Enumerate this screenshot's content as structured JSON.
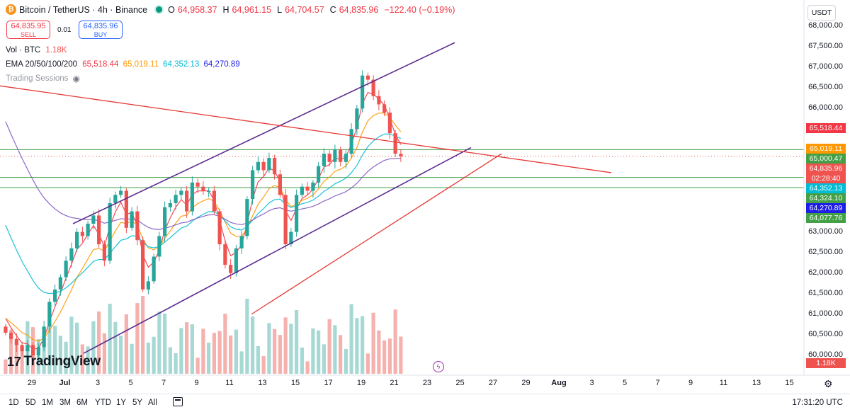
{
  "header": {
    "title": "Bitcoin / TetherUS · 4h · Binance",
    "ohlc": [
      {
        "label": "O",
        "value": "64,958.37"
      },
      {
        "label": "H",
        "value": "64,961.15"
      },
      {
        "label": "L",
        "value": "64,704.57"
      },
      {
        "label": "C",
        "value": "64,835.96"
      }
    ],
    "change": "−122.40 (−0.19%)"
  },
  "trade": {
    "sell_price": "64,835.95",
    "sell_label": "SELL",
    "spread": "0.01",
    "buy_price": "64,835.96",
    "buy_label": "BUY"
  },
  "legend": {
    "vol_label": "Vol · BTC",
    "vol_value": "1.18K",
    "ema_label": "EMA 20/50/100/200",
    "ema_values": [
      "65,518.44",
      "65,019.11",
      "64,352.13",
      "64,270.89"
    ],
    "sessions_label": "Trading Sessions"
  },
  "currency": "USDT",
  "colors": {
    "up": "#26a69a",
    "down": "#ef5350",
    "ema20": "#f23645",
    "ema50": "#ff9800",
    "ema100": "#00bcd4",
    "ema200": "#7e57c2",
    "channel": "#5c2d91",
    "trend_red": "#e53935",
    "hline": "#43a047"
  },
  "chart_data": {
    "type": "candlestick",
    "symbol": "BTCUSDT",
    "timeframe": "4h",
    "y_ticks": [
      "68,000.00",
      "67,500.00",
      "67,000.00",
      "66,500.00",
      "66,000.00",
      "65,500.00",
      "65,000.00",
      "64,500.00",
      "64,000.00",
      "63,500.00",
      "63,000.00",
      "62,500.00",
      "62,000.00",
      "61,500.00",
      "61,000.00",
      "60,500.00",
      "60,000.00"
    ],
    "ylim": [
      59950,
      68050
    ],
    "x_ticks": [
      "29",
      "Jul",
      "3",
      "5",
      "7",
      "9",
      "11",
      "13",
      "15",
      "17",
      "19",
      "21",
      "23",
      "25",
      "27",
      "29",
      "Aug",
      "3",
      "5",
      "7",
      "9",
      "11",
      "13",
      "15"
    ],
    "candles_close_path": [
      60550,
      60400,
      60250,
      60100,
      60250,
      60000,
      60200,
      60700,
      61300,
      61600,
      61900,
      62300,
      62600,
      63000,
      62900,
      63200,
      63400,
      62700,
      62300,
      63700,
      63900,
      64000,
      63100,
      63500,
      62800,
      61600,
      61800,
      62400,
      62900,
      63600,
      63700,
      63900,
      64000,
      63500,
      64200,
      64100,
      64000,
      64000,
      63500,
      62700,
      62200,
      62000,
      62600,
      62900,
      63800,
      64500,
      64700,
      64500,
      64800,
      64400,
      63900,
      62700,
      63000,
      63900,
      64100,
      64000,
      64200,
      64600,
      64900,
      64700,
      65000,
      64700,
      64900,
      65500,
      66000,
      66800,
      66700,
      66300,
      66100,
      65900,
      65400,
      64900,
      64836
    ],
    "price_labels": [
      {
        "label": "65,518.44",
        "value": 65518.44,
        "color": "#f23645"
      },
      {
        "label": "65,019.11",
        "value": 65019.11,
        "color": "#ff9800"
      },
      {
        "label": "65,000.47",
        "value": 65000.47,
        "color": "#43a047"
      },
      {
        "label": "64,835.96",
        "value": 64835.96,
        "color": "#ef5350"
      },
      {
        "label": "02:28:40",
        "value": 64700,
        "color": "#ef5350"
      },
      {
        "label": "64,352.13",
        "value": 64352.13,
        "color": "#00bcd4"
      },
      {
        "label": "64,324.10",
        "value": 64324.1,
        "color": "#43a047"
      },
      {
        "label": "64,270.89",
        "value": 64270.89,
        "color": "#1e1ee6"
      },
      {
        "label": "64,077.76",
        "value": 64077.76,
        "color": "#43a047"
      }
    ],
    "horizontal_levels": [
      65000.47,
      64324.1,
      64077.76
    ],
    "volume_label": "1.18K",
    "legend": [
      "EMA 20",
      "EMA 50",
      "EMA 100",
      "EMA 200"
    ]
  },
  "toolbar": {
    "ranges": [
      "1D",
      "5D",
      "1M",
      "3M",
      "6M",
      "YTD",
      "1Y",
      "5Y",
      "All"
    ],
    "time": "17:31:20 UTC"
  },
  "branding": {
    "logo": "TradingView"
  }
}
